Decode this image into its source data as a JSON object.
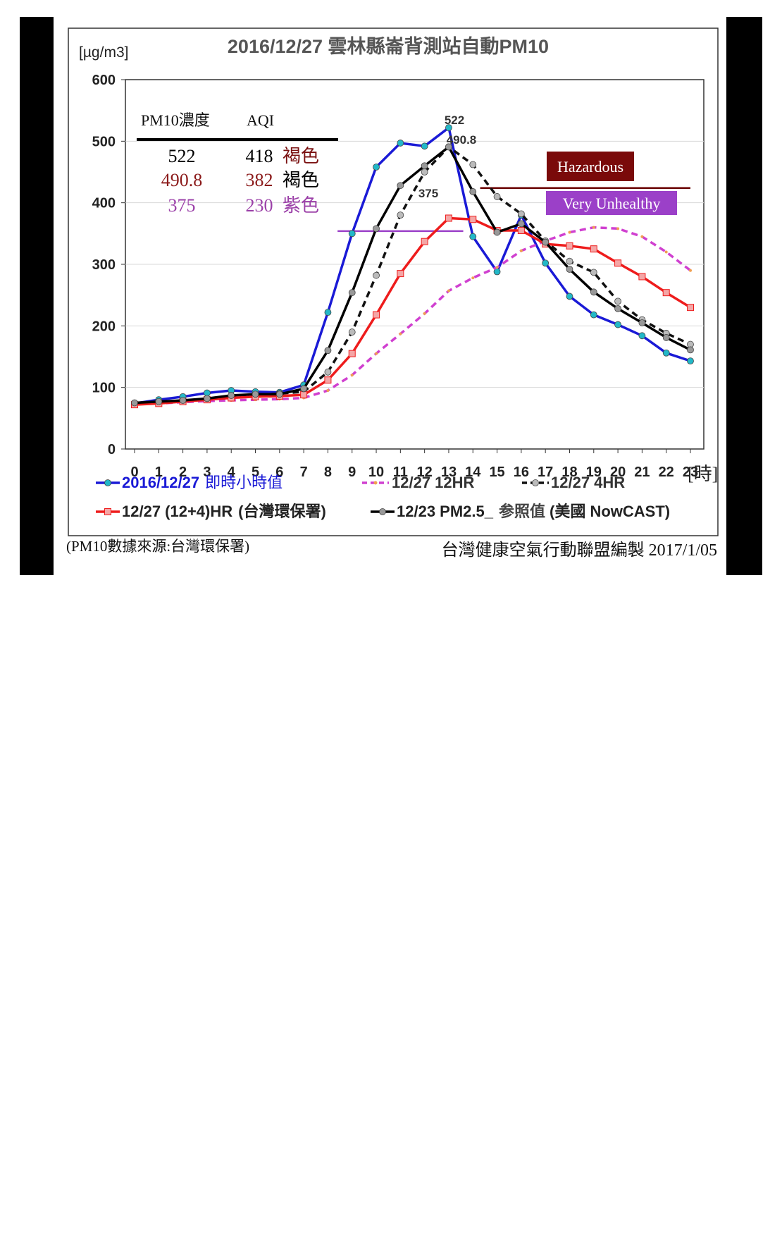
{
  "chart_data": {
    "type": "line",
    "title": "2016/12/27 雲林縣崙背測站自動PM10",
    "ylabel": "[µg/m3]",
    "xlabel": "[時]",
    "ylim": [
      0,
      600
    ],
    "yticks": [
      0,
      100,
      200,
      300,
      400,
      500,
      600
    ],
    "xlim": [
      0,
      23
    ],
    "x": [
      0,
      1,
      2,
      3,
      4,
      5,
      6,
      7,
      8,
      9,
      10,
      11,
      12,
      13,
      14,
      15,
      16,
      17,
      18,
      19,
      20,
      21,
      22,
      23
    ],
    "grid": "horizontal",
    "series": [
      {
        "name": "2016/12/27 即時小時值",
        "color": "#1a1ad6",
        "marker_color": "#22b8c8",
        "dash": "solid",
        "marker": "circle",
        "values": [
          74,
          80,
          85,
          91,
          95,
          93,
          92,
          104,
          222,
          350,
          458,
          497,
          492,
          522,
          345,
          288,
          380,
          302,
          248,
          218,
          202,
          184,
          156,
          143
        ]
      },
      {
        "name": "12/27 12HR",
        "color": "#d040d0",
        "marker_color": "#f0a050",
        "dash": "dashed",
        "marker": "none",
        "values": [
          73,
          74,
          76,
          78,
          79,
          80,
          81,
          83,
          95,
          120,
          155,
          187,
          220,
          257,
          278,
          295,
          322,
          338,
          352,
          360,
          358,
          345,
          320,
          290
        ]
      },
      {
        "name": "12/27 4HR",
        "color": "#111111",
        "marker_color": "#bbbbbb",
        "dash": "dashed",
        "marker": "circle",
        "values": [
          74,
          76,
          78,
          81,
          85,
          88,
          90,
          93,
          125,
          190,
          282,
          380,
          450,
          490.8,
          462,
          410,
          382,
          338,
          305,
          287,
          240,
          210,
          188,
          170
        ]
      },
      {
        "name": "12/27 (12+4)HR (台灣環保署)",
        "color": "#ee1c1c",
        "marker_color": "#f4a6a6",
        "dash": "solid",
        "marker": "square",
        "values": [
          72,
          74,
          77,
          80,
          83,
          85,
          86,
          88,
          112,
          155,
          218,
          285,
          337,
          375,
          373,
          355,
          355,
          333,
          330,
          325,
          302,
          280,
          254,
          230
        ]
      },
      {
        "name": "12/23 PM2.5_参照值 (美國 NowCAST)",
        "color": "#000000",
        "marker_color": "#999999",
        "dash": "solid",
        "marker": "circle",
        "values": [
          75,
          77,
          79,
          82,
          87,
          89,
          89,
          98,
          160,
          254,
          358,
          428,
          460,
          490.8,
          418,
          352,
          366,
          336,
          292,
          255,
          228,
          205,
          181,
          161
        ]
      }
    ],
    "annotations": [
      {
        "text": "522",
        "x": 13,
        "y": 522
      },
      {
        "text": "490.8",
        "x": 13,
        "y": 490.8
      },
      {
        "text": "375",
        "x": 13,
        "y": 375
      }
    ],
    "thresholds": [
      {
        "label": "Hazardous",
        "y": 424,
        "x_start": 14.3,
        "x_end": 23,
        "color": "#6b0000",
        "label_bg": "#7a0a0a"
      },
      {
        "label": "Very  Unhealthy",
        "y": 354,
        "x_start": 8.4,
        "x_end": 13.6,
        "color": "#9b40c8",
        "label_bg": "#9b40c8"
      }
    ]
  },
  "info_table": {
    "headers": [
      "PM10濃度",
      "AQI"
    ],
    "rows": [
      {
        "conc": "522",
        "aqi": "418",
        "color_name": "褐色",
        "color": "#000000",
        "name_color": "#7a1010"
      },
      {
        "conc": "490.8",
        "aqi": "382",
        "color_name": "褐色",
        "color": "#8b1a1a",
        "name_color": "#000000"
      },
      {
        "conc": "375",
        "aqi": "230",
        "color_name": "紫色",
        "color": "#9b40a8",
        "name_color": "#9b40a8"
      }
    ]
  },
  "legend": [
    {
      "label": "2016/12/27",
      "label2": "即時小時值",
      "label_color": "#1a1ad6"
    },
    {
      "label": "12/27  12HR",
      "label_color": "#333333"
    },
    {
      "label": "12/27 4HR",
      "label_color": "#333333"
    },
    {
      "label": "12/27 (12+4)HR",
      "label2": "(台灣環保署)",
      "label_color": "#222222"
    },
    {
      "label": "12/23 PM2.5_",
      "label2": "参照值",
      "label3": "(美國 NowCAST)",
      "label_color": "#222222"
    }
  ],
  "footer": {
    "source": "(PM10數據來源:台灣環保署)",
    "credit": "台灣健康空氣行動聯盟編製 2017/1/05"
  }
}
